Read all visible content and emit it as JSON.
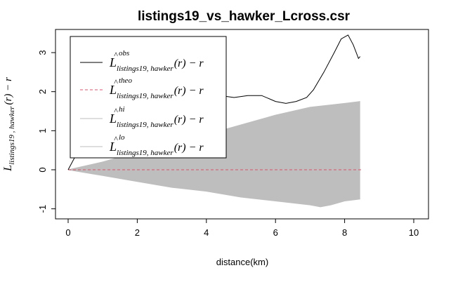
{
  "chart_data": {
    "type": "line",
    "title": "listings19_vs_hawker_Lcross.csr",
    "xlabel": "distance(km)",
    "ylabel": {
      "main": "L",
      "subscript": "listings19 , hawker",
      "suffix": "(r) − r"
    },
    "xlim": [
      0,
      10
    ],
    "ylim": [
      -1,
      3.5
    ],
    "x_ticks": [
      0,
      2,
      4,
      6,
      8,
      10
    ],
    "y_ticks": [
      -1,
      0,
      1,
      2,
      3
    ],
    "grid": false,
    "legend_position": "top-left",
    "legend": [
      {
        "symbol": "L",
        "superscript": "obs",
        "subscript": "listings19, hawker",
        "suffix": "(r) − r",
        "color": "#000000",
        "style": "solid"
      },
      {
        "symbol": "L",
        "superscript": "theo",
        "subscript": "listings19, hawker",
        "suffix": "(r) − r",
        "color": "#df536b",
        "style": "dashed"
      },
      {
        "symbol": "L",
        "superscript": "hi",
        "subscript": "listings19, hawker",
        "suffix": "(r) − r",
        "color": "#bebebe",
        "style": "solid"
      },
      {
        "symbol": "L",
        "superscript": "lo",
        "subscript": "listings19, hawker",
        "suffix": "(r) − r",
        "color": "#bebebe",
        "style": "solid"
      }
    ],
    "series": [
      {
        "name": "obs",
        "color": "#000000",
        "x": [
          0,
          0.3,
          0.6,
          1.0,
          1.4,
          1.8,
          2.2,
          2.5,
          2.8,
          3.0,
          3.3,
          3.6,
          4.0,
          4.4,
          4.8,
          5.2,
          5.6,
          6.0,
          6.3,
          6.6,
          6.9,
          7.1,
          7.4,
          7.7,
          7.9,
          8.1,
          8.25,
          8.4,
          8.45
        ],
        "y": [
          0,
          0.5,
          1.0,
          1.5,
          1.85,
          2.1,
          2.2,
          2.25,
          2.2,
          2.05,
          1.95,
          2.05,
          1.95,
          1.9,
          1.85,
          1.9,
          1.9,
          1.75,
          1.7,
          1.75,
          1.85,
          2.05,
          2.5,
          3.0,
          3.35,
          3.45,
          3.2,
          2.85,
          2.9
        ]
      },
      {
        "name": "theo",
        "color": "#df536b",
        "x": [
          0,
          8.5
        ],
        "y": [
          0,
          0
        ]
      },
      {
        "name": "hi",
        "color": "#bebebe",
        "x": [
          0,
          1,
          2,
          3,
          4,
          5,
          6,
          7,
          8,
          8.45
        ],
        "y": [
          0,
          0.2,
          0.45,
          0.7,
          0.9,
          1.15,
          1.4,
          1.6,
          1.7,
          1.75
        ]
      },
      {
        "name": "lo",
        "color": "#bebebe",
        "x": [
          0,
          1,
          2,
          3,
          4,
          5,
          6,
          7,
          7.3,
          7.6,
          8,
          8.45
        ],
        "y": [
          0,
          -0.15,
          -0.3,
          -0.45,
          -0.55,
          -0.7,
          -0.8,
          -0.9,
          -0.95,
          -0.9,
          -0.8,
          -0.75
        ]
      }
    ]
  }
}
